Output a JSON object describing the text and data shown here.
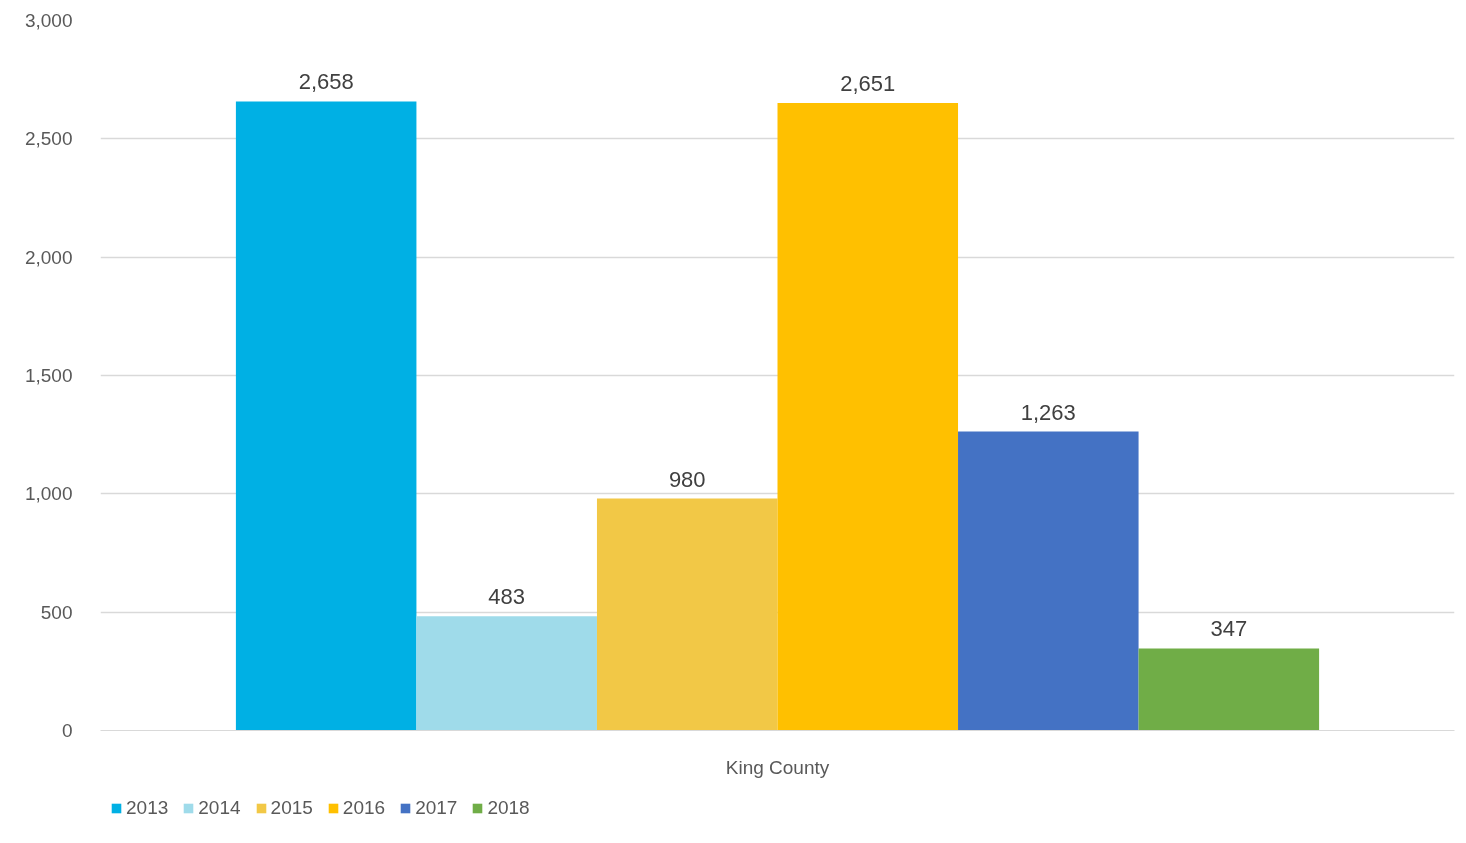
{
  "chart_data": {
    "type": "bar",
    "categories": [
      "King County"
    ],
    "series": [
      {
        "name": "2013",
        "color": "#00b0e4",
        "values": [
          2658
        ],
        "value_labels": [
          "2,658"
        ]
      },
      {
        "name": "2014",
        "color": "#9fdbea",
        "values": [
          483
        ],
        "value_labels": [
          "483"
        ]
      },
      {
        "name": "2015",
        "color": "#f2c846",
        "values": [
          980
        ],
        "value_labels": [
          "980"
        ]
      },
      {
        "name": "2016",
        "color": "#ffc000",
        "values": [
          2651
        ],
        "value_labels": [
          "2,651"
        ]
      },
      {
        "name": "2017",
        "color": "#4472c4",
        "values": [
          1263
        ],
        "value_labels": [
          "1,263"
        ]
      },
      {
        "name": "2018",
        "color": "#70ad47",
        "values": [
          347
        ],
        "value_labels": [
          "347"
        ]
      }
    ],
    "ylim": [
      0,
      3000
    ],
    "yticks": [
      {
        "value": 0,
        "label": "0"
      },
      {
        "value": 500,
        "label": "500"
      },
      {
        "value": 1000,
        "label": "1,000"
      },
      {
        "value": 1500,
        "label": "1,500"
      },
      {
        "value": 2000,
        "label": "2,000"
      },
      {
        "value": 2500,
        "label": "2,500"
      },
      {
        "value": 3000,
        "label": "3,000"
      }
    ],
    "grid": "y",
    "legend": "bottom left"
  }
}
